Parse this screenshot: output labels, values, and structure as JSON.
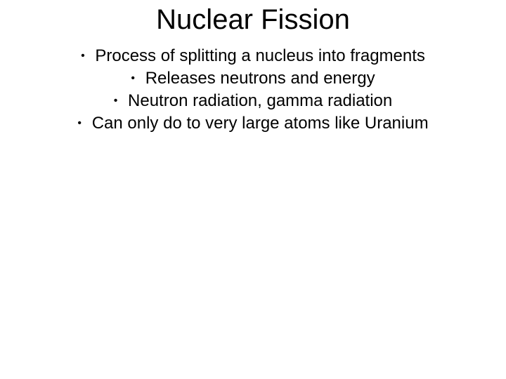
{
  "slide": {
    "title": "Nuclear Fission",
    "bullets": [
      "Process of splitting a nucleus into fragments",
      "Releases neutrons and energy",
      "Neutron radiation, gamma radiation",
      "Can only do to very large atoms like Uranium"
    ],
    "title_fontsize": 40,
    "body_fontsize": 24,
    "font_family": "Arial",
    "text_color": "#000000",
    "background_color": "#ffffff"
  }
}
